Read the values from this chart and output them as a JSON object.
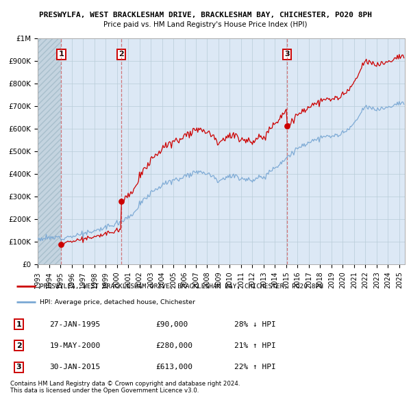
{
  "title": "PRESWYLFA, WEST BRACKLESHAM DRIVE, BRACKLESHAM BAY, CHICHESTER, PO20 8PH",
  "subtitle": "Price paid vs. HM Land Registry's House Price Index (HPI)",
  "sales": [
    {
      "label": "1",
      "date": "1995-01-27",
      "price": 90000,
      "pct": "28% ↓ HPI",
      "date_str": "27-JAN-1995"
    },
    {
      "label": "2",
      "date": "2000-05-19",
      "price": 280000,
      "pct": "21% ↑ HPI",
      "date_str": "19-MAY-2000"
    },
    {
      "label": "3",
      "date": "2015-01-30",
      "price": 613000,
      "pct": "22% ↑ HPI",
      "date_str": "30-JAN-2015"
    }
  ],
  "legend_property": "PRESWYLFA, WEST BRACKLESHAM DRIVE, BRACKLESHAM BAY, CHICHESTER, PO20 8PH",
  "legend_hpi": "HPI: Average price, detached house, Chichester",
  "footer1": "Contains HM Land Registry data © Crown copyright and database right 2024.",
  "footer2": "This data is licensed under the Open Government Licence v3.0.",
  "property_color": "#cc0000",
  "hpi_color": "#7aa8d4",
  "background_plot": "#dce8f5",
  "hatch_color": "#c4d4e0",
  "ylim_max": 1000000,
  "ylim_min": 0,
  "x_start_year": 1993,
  "x_end_year": 2025
}
